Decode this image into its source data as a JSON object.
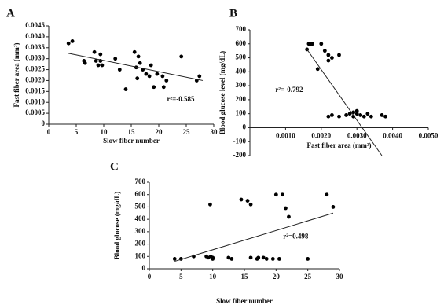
{
  "chart_data": [
    {
      "type": "scatter",
      "panel": "A",
      "xlabel": "Slow fiber number",
      "ylabel": "Fast fiber area (mm²)",
      "annotation": "r²=-0.585",
      "color": "#000000",
      "xlim": [
        0,
        30
      ],
      "xticks": [
        0,
        5,
        10,
        15,
        20,
        25,
        30
      ],
      "ylim": [
        0,
        0.0045
      ],
      "yticks": [
        0,
        0.0005,
        {
          "value": 0.001,
          "label": "0.0010"
        },
        0.0015,
        {
          "value": 0.002,
          "label": "0.0020"
        },
        0.0025,
        {
          "value": 0.003,
          "label": "0.0030"
        },
        0.0035,
        {
          "value": 0.004,
          "label": "0.0040"
        },
        0.0045
      ],
      "x": [
        3.6,
        4.3,
        6.4,
        6.6,
        8.3,
        8.6,
        9.0,
        9.4,
        9.4,
        9.7,
        12.1,
        12.9,
        14.0,
        15.6,
        15.9,
        16.1,
        16.3,
        16.6,
        17.1,
        17.7,
        18.3,
        18.6,
        19.1,
        19.7,
        20.7,
        20.9,
        21.4,
        24.1,
        26.9,
        27.4
      ],
      "values": [
        0.0037,
        0.0038,
        0.0029,
        0.0028,
        0.0033,
        0.0029,
        0.0027,
        0.0032,
        0.0029,
        0.0027,
        0.003,
        0.0025,
        0.0016,
        0.0033,
        0.0026,
        0.0021,
        0.0031,
        0.0028,
        0.0025,
        0.0023,
        0.0022,
        0.0027,
        0.0017,
        0.0023,
        0.0022,
        0.0017,
        0.002,
        0.0031,
        0.002,
        0.0022
      ],
      "trendline": {
        "x": [
          3.5,
          28
        ],
        "values": [
          0.00325,
          0.002
        ]
      }
    },
    {
      "type": "scatter",
      "panel": "B",
      "xlabel": "Fast fiber area (mm²)",
      "ylabel": "Blood glucose level (mg/dL)",
      "annotation": "r²=-0.792",
      "color": "#000000",
      "xlim": [
        0,
        0.005
      ],
      "xticks": [
        {
          "value": 0.001,
          "label": "0.0010"
        },
        {
          "value": 0.002,
          "label": "0.0020"
        },
        {
          "value": 0.003,
          "label": "0.0030"
        },
        {
          "value": 0.004,
          "label": "0.0040"
        },
        {
          "value": 0.005,
          "label": "0.0050"
        }
      ],
      "ylim": [
        -200,
        700
      ],
      "yticks": [
        -200,
        -100,
        0,
        100,
        200,
        300,
        400,
        500,
        600,
        700
      ],
      "x": [
        0.00165,
        0.0017,
        0.00175,
        0.0016,
        0.002,
        0.0021,
        0.0022,
        0.0023,
        0.0022,
        0.0025,
        0.0019,
        0.0022,
        0.0023,
        0.0025,
        0.0027,
        0.0028,
        0.0029,
        0.0029,
        0.003,
        0.003,
        0.0031,
        0.0032,
        0.0033,
        0.0034,
        0.0037,
        0.0038
      ],
      "values": [
        600,
        600,
        600,
        560,
        600,
        550,
        520,
        500,
        480,
        520,
        420,
        80,
        90,
        80,
        90,
        100,
        110,
        80,
        100,
        120,
        90,
        80,
        100,
        80,
        90,
        80
      ],
      "trendline": {
        "x": [
          0.0016,
          0.0037
        ],
        "values": [
          560,
          -200
        ]
      }
    },
    {
      "type": "scatter",
      "panel": "C",
      "xlabel": "Slow fiber number",
      "ylabel": "Blood glucose (mg/dL)",
      "annotation": "r²=0.498",
      "color": "#000000",
      "xlim": [
        0,
        30
      ],
      "xticks": [
        0,
        5,
        10,
        15,
        20,
        25,
        30
      ],
      "ylim": [
        0,
        700
      ],
      "yticks": [
        0,
        100,
        200,
        300,
        400,
        500,
        600,
        700
      ],
      "x": [
        4,
        5,
        7,
        9,
        9.3,
        9.6,
        9.7,
        10,
        10,
        12.5,
        13,
        14.5,
        15.5,
        16,
        16,
        17,
        17.2,
        18,
        18.5,
        19.5,
        20,
        20.5,
        21,
        21.5,
        22,
        25,
        28,
        29
      ],
      "values": [
        80,
        80,
        100,
        100,
        90,
        520,
        100,
        90,
        80,
        90,
        80,
        560,
        550,
        520,
        90,
        80,
        90,
        90,
        80,
        80,
        600,
        80,
        600,
        490,
        420,
        80,
        600,
        500
      ],
      "trendline": {
        "x": [
          4,
          29
        ],
        "values": [
          60,
          450
        ]
      }
    }
  ]
}
